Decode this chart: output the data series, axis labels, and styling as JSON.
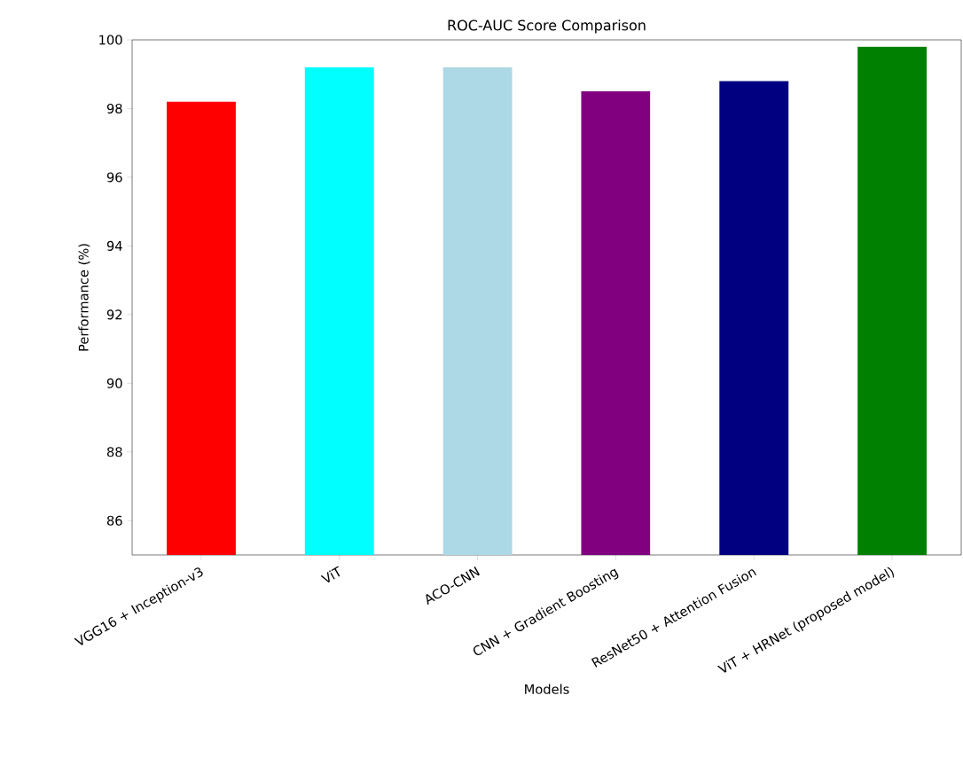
{
  "chart_data": {
    "type": "bar",
    "title": "ROC-AUC Score Comparison",
    "xlabel": "Models",
    "ylabel": "Performance (%)",
    "categories": [
      "VGG16 + Inception-v3",
      "ViT",
      "ACO-CNN",
      "CNN + Gradient Boosting",
      "ResNet50 + Attention Fusion",
      "ViT + HRNet (proposed model)"
    ],
    "values": [
      98.2,
      99.2,
      99.2,
      98.5,
      98.8,
      99.8
    ],
    "colors": [
      "#ff0000",
      "#00ffff",
      "#add8e6",
      "#800080",
      "#000080",
      "#008000"
    ],
    "ylim": [
      85,
      100
    ],
    "yticks": [
      86,
      88,
      90,
      92,
      94,
      96,
      98,
      100
    ]
  }
}
